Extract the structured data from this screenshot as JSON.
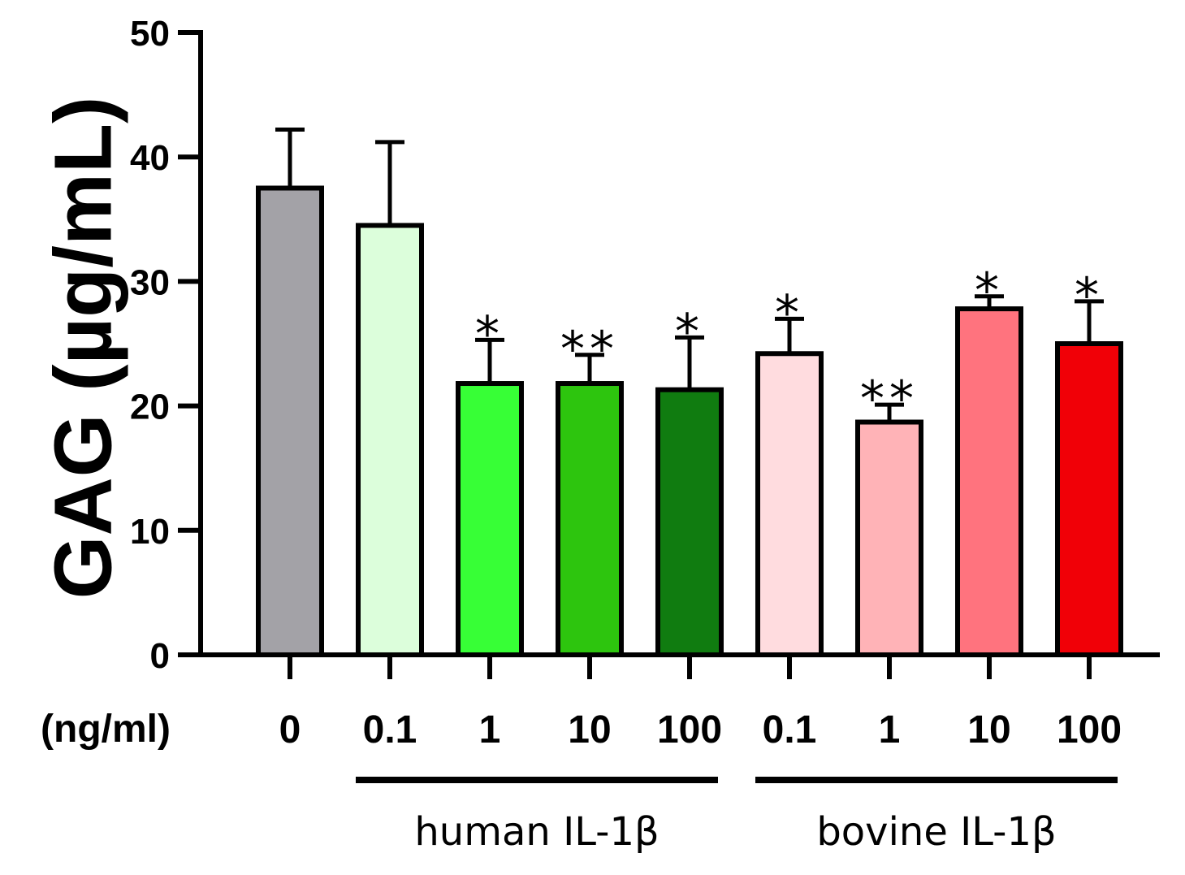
{
  "chart_data": {
    "type": "bar",
    "title": "",
    "ylabel": "GAG (µg/mL)",
    "xlabel": "",
    "x_unit_label": "(ng/ml)",
    "ylim": [
      0,
      50
    ],
    "yticks": [
      0,
      10,
      20,
      30,
      40,
      50
    ],
    "categories": [
      "0",
      "0.1",
      "1",
      "10",
      "100",
      "0.1",
      "1",
      "10",
      "100"
    ],
    "values": [
      37.5,
      34.5,
      21.8,
      21.8,
      21.3,
      24.2,
      18.7,
      27.8,
      25.0
    ],
    "errors": [
      4.7,
      6.7,
      3.5,
      2.3,
      4.2,
      2.8,
      1.4,
      1.0,
      3.4
    ],
    "significance": [
      "",
      "",
      "*",
      "**",
      "*",
      "*",
      "**",
      "*",
      "*"
    ],
    "colors": [
      "#a3a2a7",
      "#dcfedb",
      "#37ff36",
      "#2dc50e",
      "#107c10",
      "#ffdcdf",
      "#ffb3b7",
      "#ff737e",
      "#f10007"
    ],
    "groups": [
      {
        "label": "human IL-1β",
        "start": 1,
        "end": 4
      },
      {
        "label": "bovine IL-1β",
        "start": 5,
        "end": 8
      }
    ],
    "grid": false,
    "legend": "none"
  }
}
